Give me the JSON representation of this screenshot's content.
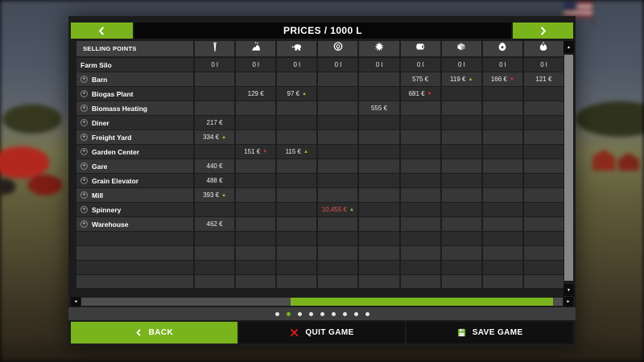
{
  "colors": {
    "accent": "#7ab41d",
    "trend_up": "#8cc63f",
    "trend_down": "#e03535",
    "alert_value": "#e05555"
  },
  "header": {
    "title": "PRICES / 1000 L",
    "prev_icon": "chevron-left-icon",
    "next_icon": "chevron-right-icon"
  },
  "table": {
    "corner_label": "SELLING POINTS",
    "columns": [
      {
        "icon": "carrot-icon"
      },
      {
        "icon": "manure-heap-icon"
      },
      {
        "icon": "slurry-tanker-icon"
      },
      {
        "icon": "hose-reel-icon"
      },
      {
        "icon": "wood-chips-icon"
      },
      {
        "icon": "fabric-roll-icon"
      },
      {
        "icon": "wool-pallet-icon"
      },
      {
        "icon": "egg-icon"
      },
      {
        "icon": "seed-bag-icon"
      }
    ],
    "rows": [
      {
        "name": "Farm Silo",
        "link": false,
        "cells": [
          {
            "v": "0 l"
          },
          {
            "v": "0 l"
          },
          {
            "v": "0 l"
          },
          {
            "v": "0 l"
          },
          {
            "v": "0 l"
          },
          {
            "v": "0 l"
          },
          {
            "v": "0 l"
          },
          {
            "v": "0 l"
          },
          {
            "v": "0 l"
          }
        ]
      },
      {
        "name": "Barn",
        "link": true,
        "cells": [
          {
            "v": ""
          },
          {
            "v": ""
          },
          {
            "v": ""
          },
          {
            "v": ""
          },
          {
            "v": ""
          },
          {
            "v": "575 €"
          },
          {
            "v": "119 €",
            "t": "up"
          },
          {
            "v": "166 €",
            "t": "down"
          },
          {
            "v": "121 €"
          }
        ]
      },
      {
        "name": "Biogas Plant",
        "link": true,
        "cells": [
          {
            "v": ""
          },
          {
            "v": "129 €"
          },
          {
            "v": "97 €",
            "t": "up"
          },
          {
            "v": ""
          },
          {
            "v": ""
          },
          {
            "v": "681 €",
            "t": "down"
          },
          {
            "v": ""
          },
          {
            "v": ""
          },
          {
            "v": ""
          }
        ]
      },
      {
        "name": "Biomass Heating",
        "link": true,
        "cells": [
          {
            "v": ""
          },
          {
            "v": ""
          },
          {
            "v": ""
          },
          {
            "v": ""
          },
          {
            "v": "555 €"
          },
          {
            "v": ""
          },
          {
            "v": ""
          },
          {
            "v": ""
          },
          {
            "v": ""
          }
        ]
      },
      {
        "name": "Diner",
        "link": true,
        "cells": [
          {
            "v": "217 €"
          },
          {
            "v": ""
          },
          {
            "v": ""
          },
          {
            "v": ""
          },
          {
            "v": ""
          },
          {
            "v": ""
          },
          {
            "v": ""
          },
          {
            "v": ""
          },
          {
            "v": ""
          }
        ]
      },
      {
        "name": "Freight Yard",
        "link": true,
        "cells": [
          {
            "v": "334 €",
            "t": "up"
          },
          {
            "v": ""
          },
          {
            "v": ""
          },
          {
            "v": ""
          },
          {
            "v": ""
          },
          {
            "v": ""
          },
          {
            "v": ""
          },
          {
            "v": ""
          },
          {
            "v": ""
          }
        ]
      },
      {
        "name": "Garden Center",
        "link": true,
        "cells": [
          {
            "v": ""
          },
          {
            "v": "151 €",
            "t": "down"
          },
          {
            "v": "115 €",
            "t": "up"
          },
          {
            "v": ""
          },
          {
            "v": ""
          },
          {
            "v": ""
          },
          {
            "v": ""
          },
          {
            "v": ""
          },
          {
            "v": ""
          }
        ]
      },
      {
        "name": "Gare",
        "link": true,
        "cells": [
          {
            "v": "440 €"
          },
          {
            "v": ""
          },
          {
            "v": ""
          },
          {
            "v": ""
          },
          {
            "v": ""
          },
          {
            "v": ""
          },
          {
            "v": ""
          },
          {
            "v": ""
          },
          {
            "v": ""
          }
        ]
      },
      {
        "name": "Grain Elevator",
        "link": true,
        "cells": [
          {
            "v": "488 €"
          },
          {
            "v": ""
          },
          {
            "v": ""
          },
          {
            "v": ""
          },
          {
            "v": ""
          },
          {
            "v": ""
          },
          {
            "v": ""
          },
          {
            "v": ""
          },
          {
            "v": ""
          }
        ]
      },
      {
        "name": "Mill",
        "link": true,
        "cells": [
          {
            "v": "393 €",
            "t": "up"
          },
          {
            "v": ""
          },
          {
            "v": ""
          },
          {
            "v": ""
          },
          {
            "v": ""
          },
          {
            "v": ""
          },
          {
            "v": ""
          },
          {
            "v": ""
          },
          {
            "v": ""
          }
        ]
      },
      {
        "name": "Spinnery",
        "link": true,
        "cells": [
          {
            "v": ""
          },
          {
            "v": ""
          },
          {
            "v": ""
          },
          {
            "v": "10,455 €",
            "t": "up",
            "alert": true
          },
          {
            "v": ""
          },
          {
            "v": ""
          },
          {
            "v": ""
          },
          {
            "v": ""
          },
          {
            "v": ""
          }
        ]
      },
      {
        "name": "Warehouse",
        "link": true,
        "cells": [
          {
            "v": "462 €"
          },
          {
            "v": ""
          },
          {
            "v": ""
          },
          {
            "v": ""
          },
          {
            "v": ""
          },
          {
            "v": ""
          },
          {
            "v": ""
          },
          {
            "v": ""
          },
          {
            "v": ""
          }
        ]
      }
    ],
    "empty_filler_rows": 4,
    "trend_up_glyph": "▲",
    "trend_down_glyph": "▼"
  },
  "scrollbars": {
    "v_up_glyph": "▲",
    "v_down_glyph": "▼",
    "h_left_glyph": "◄",
    "h_right_glyph": "►"
  },
  "pagination": {
    "count": 9,
    "active_index": 1
  },
  "footer": {
    "back": {
      "label": "BACK",
      "icon": "chevron-left-icon"
    },
    "quit": {
      "label": "QUIT GAME",
      "icon": "red-x-icon"
    },
    "save": {
      "label": "SAVE GAME",
      "icon": "floppy-disk-icon"
    }
  }
}
